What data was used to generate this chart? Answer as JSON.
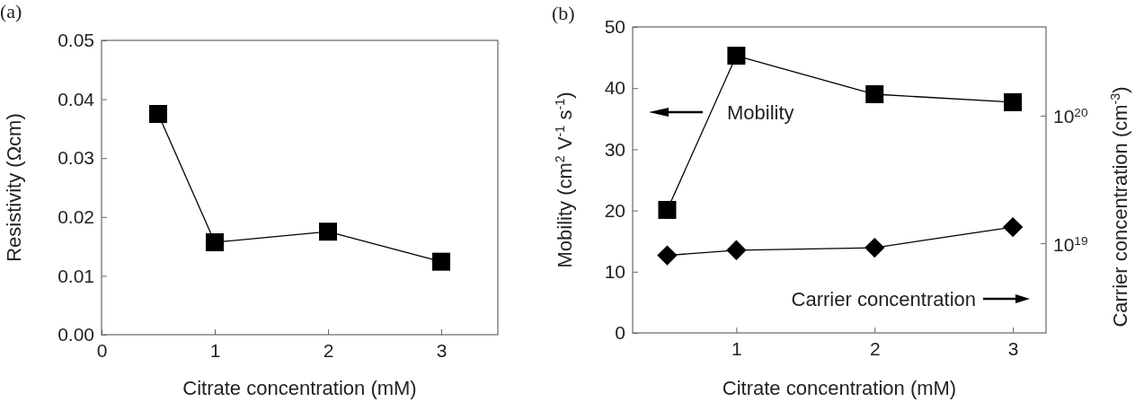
{
  "chart_data": [
    {
      "type": "line",
      "title": "(a)",
      "xlabel": "Citrate concentration (mM)",
      "ylabel": "Resistivity (Ωcm)",
      "x": [
        0.5,
        1,
        2,
        3
      ],
      "xlim": [
        0,
        3.5
      ],
      "xticks": [
        0,
        1,
        2,
        3
      ],
      "ylim": [
        0,
        0.05
      ],
      "yticks": [
        {
          "value": 0,
          "label": "0.00"
        },
        {
          "value": 0.01,
          "label": "0.01"
        },
        {
          "value": 0.02,
          "label": "0.02"
        },
        {
          "value": 0.03,
          "label": "0.03"
        },
        {
          "value": 0.04,
          "label": "0.04"
        },
        {
          "value": 0.05,
          "label": "0.05"
        }
      ],
      "marker": "square",
      "grid": false,
      "series": [
        {
          "color": "#000000",
          "values": [
            0.0375,
            0.0157,
            0.0175,
            0.0124
          ]
        }
      ]
    },
    {
      "type": "line",
      "title": "(b)",
      "xlabel": "Citrate concentration (mM)",
      "ylabel": "Mobility (cm$^{2}$ V$^{-1}$ s$^{-1}$)",
      "y2label": "Carrier concentration (cm$^{-3}$)",
      "x": [
        0.5,
        1,
        2,
        3
      ],
      "xlim": [
        0.25,
        3.24
      ],
      "xticks": [
        1,
        2,
        3
      ],
      "ylim": [
        0,
        50
      ],
      "yticks": [
        0,
        10,
        20,
        30,
        40,
        50
      ],
      "y2lim": [
        2e+18,
        5e+20
      ],
      "y2ticks": [
        {
          "value": 1e+19,
          "label": "10$^{19}$"
        },
        {
          "value": 1e+20,
          "label": "10$^{20}$"
        }
      ],
      "log": "y2",
      "grid": false,
      "legend": "top left",
      "series": [
        {
          "name": "Mobility",
          "color": "#000000",
          "marker": "square",
          "values": [
            20.1,
            45.3,
            39.0,
            37.7
          ]
        },
        {
          "name": "Carrier concentration",
          "color": "#000000",
          "marker": "diamond",
          "axis": "y2",
          "values": [
            8.1e+18,
            8.9e+18,
            9.3e+18,
            1.35e+19
          ]
        }
      ]
    }
  ]
}
